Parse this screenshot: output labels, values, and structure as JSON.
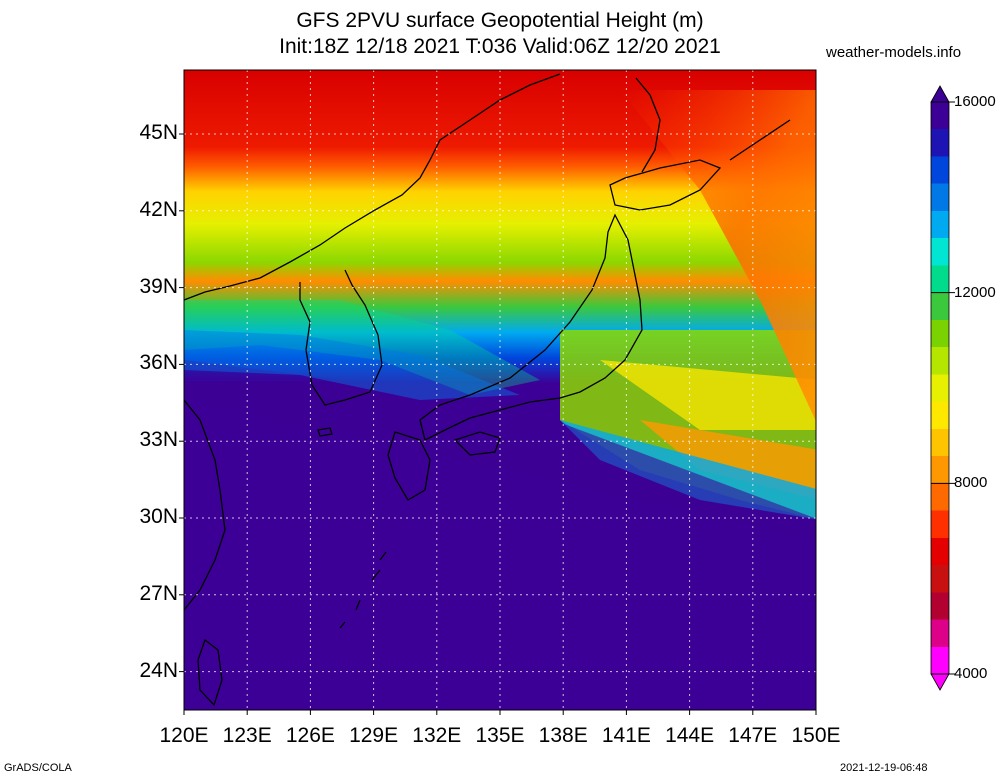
{
  "header": {
    "title_line1": "GFS 2PVU surface Geopotential Height (m)",
    "title_line2": "Init:18Z 12/18 2021 T:036 Valid:06Z 12/20 2021",
    "website": "weather-models.info"
  },
  "map": {
    "region": "Japan / Korea / East China Sea",
    "lon_range": [
      120,
      150
    ],
    "lat_range": [
      22.5,
      47.5
    ],
    "lat_labels": [
      "45N",
      "42N",
      "39N",
      "36N",
      "33N",
      "30N",
      "27N",
      "24N"
    ],
    "lon_labels": [
      "120E",
      "123E",
      "126E",
      "129E",
      "132E",
      "135E",
      "138E",
      "141E",
      "144E",
      "147E",
      "150E"
    ],
    "grid": "dotted"
  },
  "colorbar": {
    "labels": [
      "16000",
      "12000",
      "8000",
      "4000"
    ],
    "min": 4000,
    "max": 16000,
    "colors": [
      "#ff00ff",
      "#dd0088",
      "#b20030",
      "#c81010",
      "#e40000",
      "#ff3000",
      "#ff6a00",
      "#ff9800",
      "#ffc400",
      "#ffe800",
      "#e6f000",
      "#b4e600",
      "#7ad200",
      "#3cc83c",
      "#00dc8c",
      "#00e6d2",
      "#00aaf0",
      "#0078e6",
      "#0046dc",
      "#1e14b4",
      "#3c0096"
    ]
  },
  "footer": {
    "credit": "GrADS/COLA",
    "timestamp": "2021-12-19-06:48"
  }
}
